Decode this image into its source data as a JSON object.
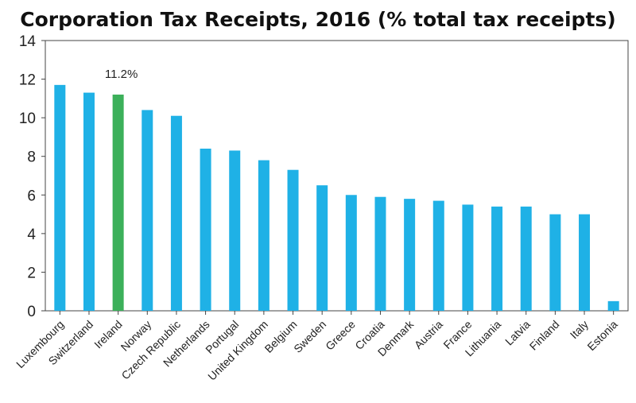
{
  "chart_data": {
    "type": "bar",
    "title": "Corporation Tax Receipts, 2016 (% total tax receipts)",
    "xlabel": "",
    "ylabel": "",
    "ylim": [
      0,
      14
    ],
    "yticks": [
      0,
      2,
      4,
      6,
      8,
      10,
      12,
      14
    ],
    "grid": false,
    "categories": [
      "Luxembourg",
      "Switzerland",
      "Ireland",
      "Norway",
      "Czech Republic",
      "Netherlands",
      "Portugal",
      "United Kingdom",
      "Belgium",
      "Sweden",
      "Greece",
      "Croatia",
      "Denmark",
      "Austria",
      "France",
      "Lithuania",
      "Latvia",
      "Finland",
      "Italy",
      "Estonia"
    ],
    "values": [
      11.7,
      11.3,
      11.2,
      10.4,
      10.1,
      8.4,
      8.3,
      7.8,
      7.3,
      6.5,
      6.0,
      5.9,
      5.8,
      5.7,
      5.5,
      5.4,
      5.4,
      5.0,
      5.0,
      0.5
    ],
    "bar_color": "#1fb1e6",
    "highlight_color": "#3cb05a",
    "highlight_category": "Ireland",
    "annotations": [
      {
        "category": "Ireland",
        "text": "11.2%"
      }
    ]
  }
}
